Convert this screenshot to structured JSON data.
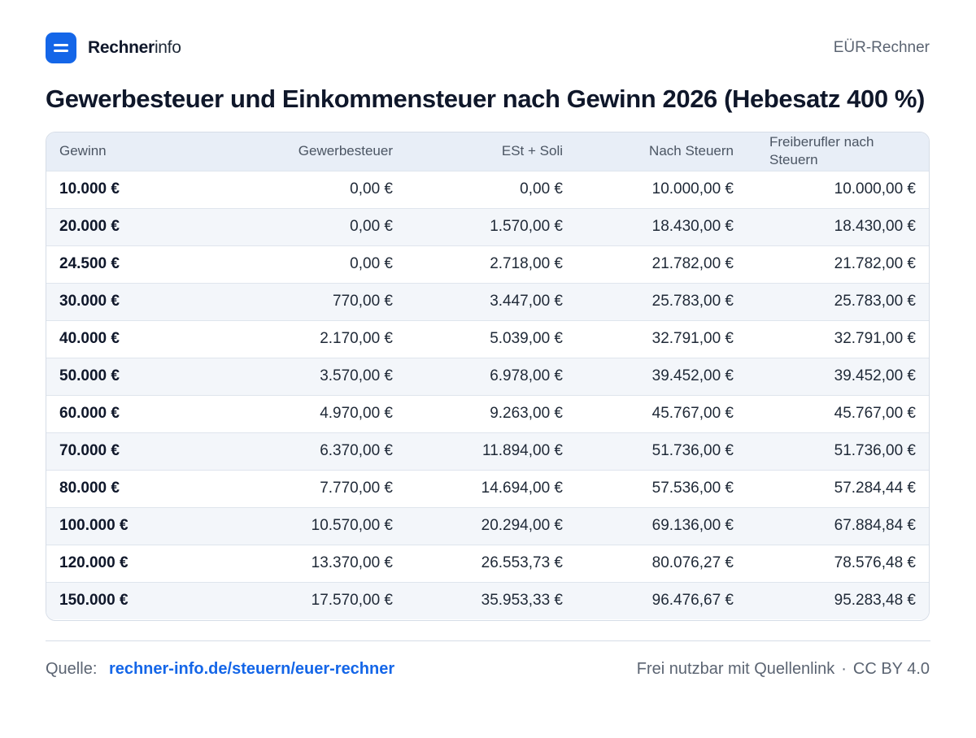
{
  "brand": {
    "name_strong": "Rechner",
    "name_light": "info",
    "logo_icon": "menu-lines-icon"
  },
  "header": {
    "right_label": "EÜR-Rechner"
  },
  "title": "Gewerbesteuer und Einkommensteuer nach Gewinn 2026 (Hebesatz 400 %)",
  "table": {
    "columns": [
      "Gewinn",
      "Gewerbesteuer",
      "ESt + Soli",
      "Nach Steuern",
      "Freiberufler nach Steuern"
    ],
    "rows": [
      [
        "10.000 €",
        "0,00 €",
        "0,00 €",
        "10.000,00 €",
        "10.000,00 €"
      ],
      [
        "20.000 €",
        "0,00 €",
        "1.570,00 €",
        "18.430,00 €",
        "18.430,00 €"
      ],
      [
        "24.500 €",
        "0,00 €",
        "2.718,00 €",
        "21.782,00 €",
        "21.782,00 €"
      ],
      [
        "30.000 €",
        "770,00 €",
        "3.447,00 €",
        "25.783,00 €",
        "25.783,00 €"
      ],
      [
        "40.000 €",
        "2.170,00 €",
        "5.039,00 €",
        "32.791,00 €",
        "32.791,00 €"
      ],
      [
        "50.000 €",
        "3.570,00 €",
        "6.978,00 €",
        "39.452,00 €",
        "39.452,00 €"
      ],
      [
        "60.000 €",
        "4.970,00 €",
        "9.263,00 €",
        "45.767,00 €",
        "45.767,00 €"
      ],
      [
        "70.000 €",
        "6.370,00 €",
        "11.894,00 €",
        "51.736,00 €",
        "51.736,00 €"
      ],
      [
        "80.000 €",
        "7.770,00 €",
        "14.694,00 €",
        "57.536,00 €",
        "57.284,44 €"
      ],
      [
        "100.000 €",
        "10.570,00 €",
        "20.294,00 €",
        "69.136,00 €",
        "67.884,84 €"
      ],
      [
        "120.000 €",
        "13.370,00 €",
        "26.553,73 €",
        "80.076,27 €",
        "78.576,48 €"
      ],
      [
        "150.000 €",
        "17.570,00 €",
        "35.953,33 €",
        "96.476,67 €",
        "95.283,48 €"
      ]
    ]
  },
  "footer": {
    "source_label": "Quelle:",
    "source_link": "rechner-info.de/steuern/euer-rechner",
    "license_text": "Frei nutzbar mit Quellenlink",
    "separator": "·",
    "license": "CC BY 4.0"
  },
  "colors": {
    "accent": "#1466e8",
    "header_bg": "#e8eef7",
    "stripe_bg": "#f3f6fa"
  }
}
